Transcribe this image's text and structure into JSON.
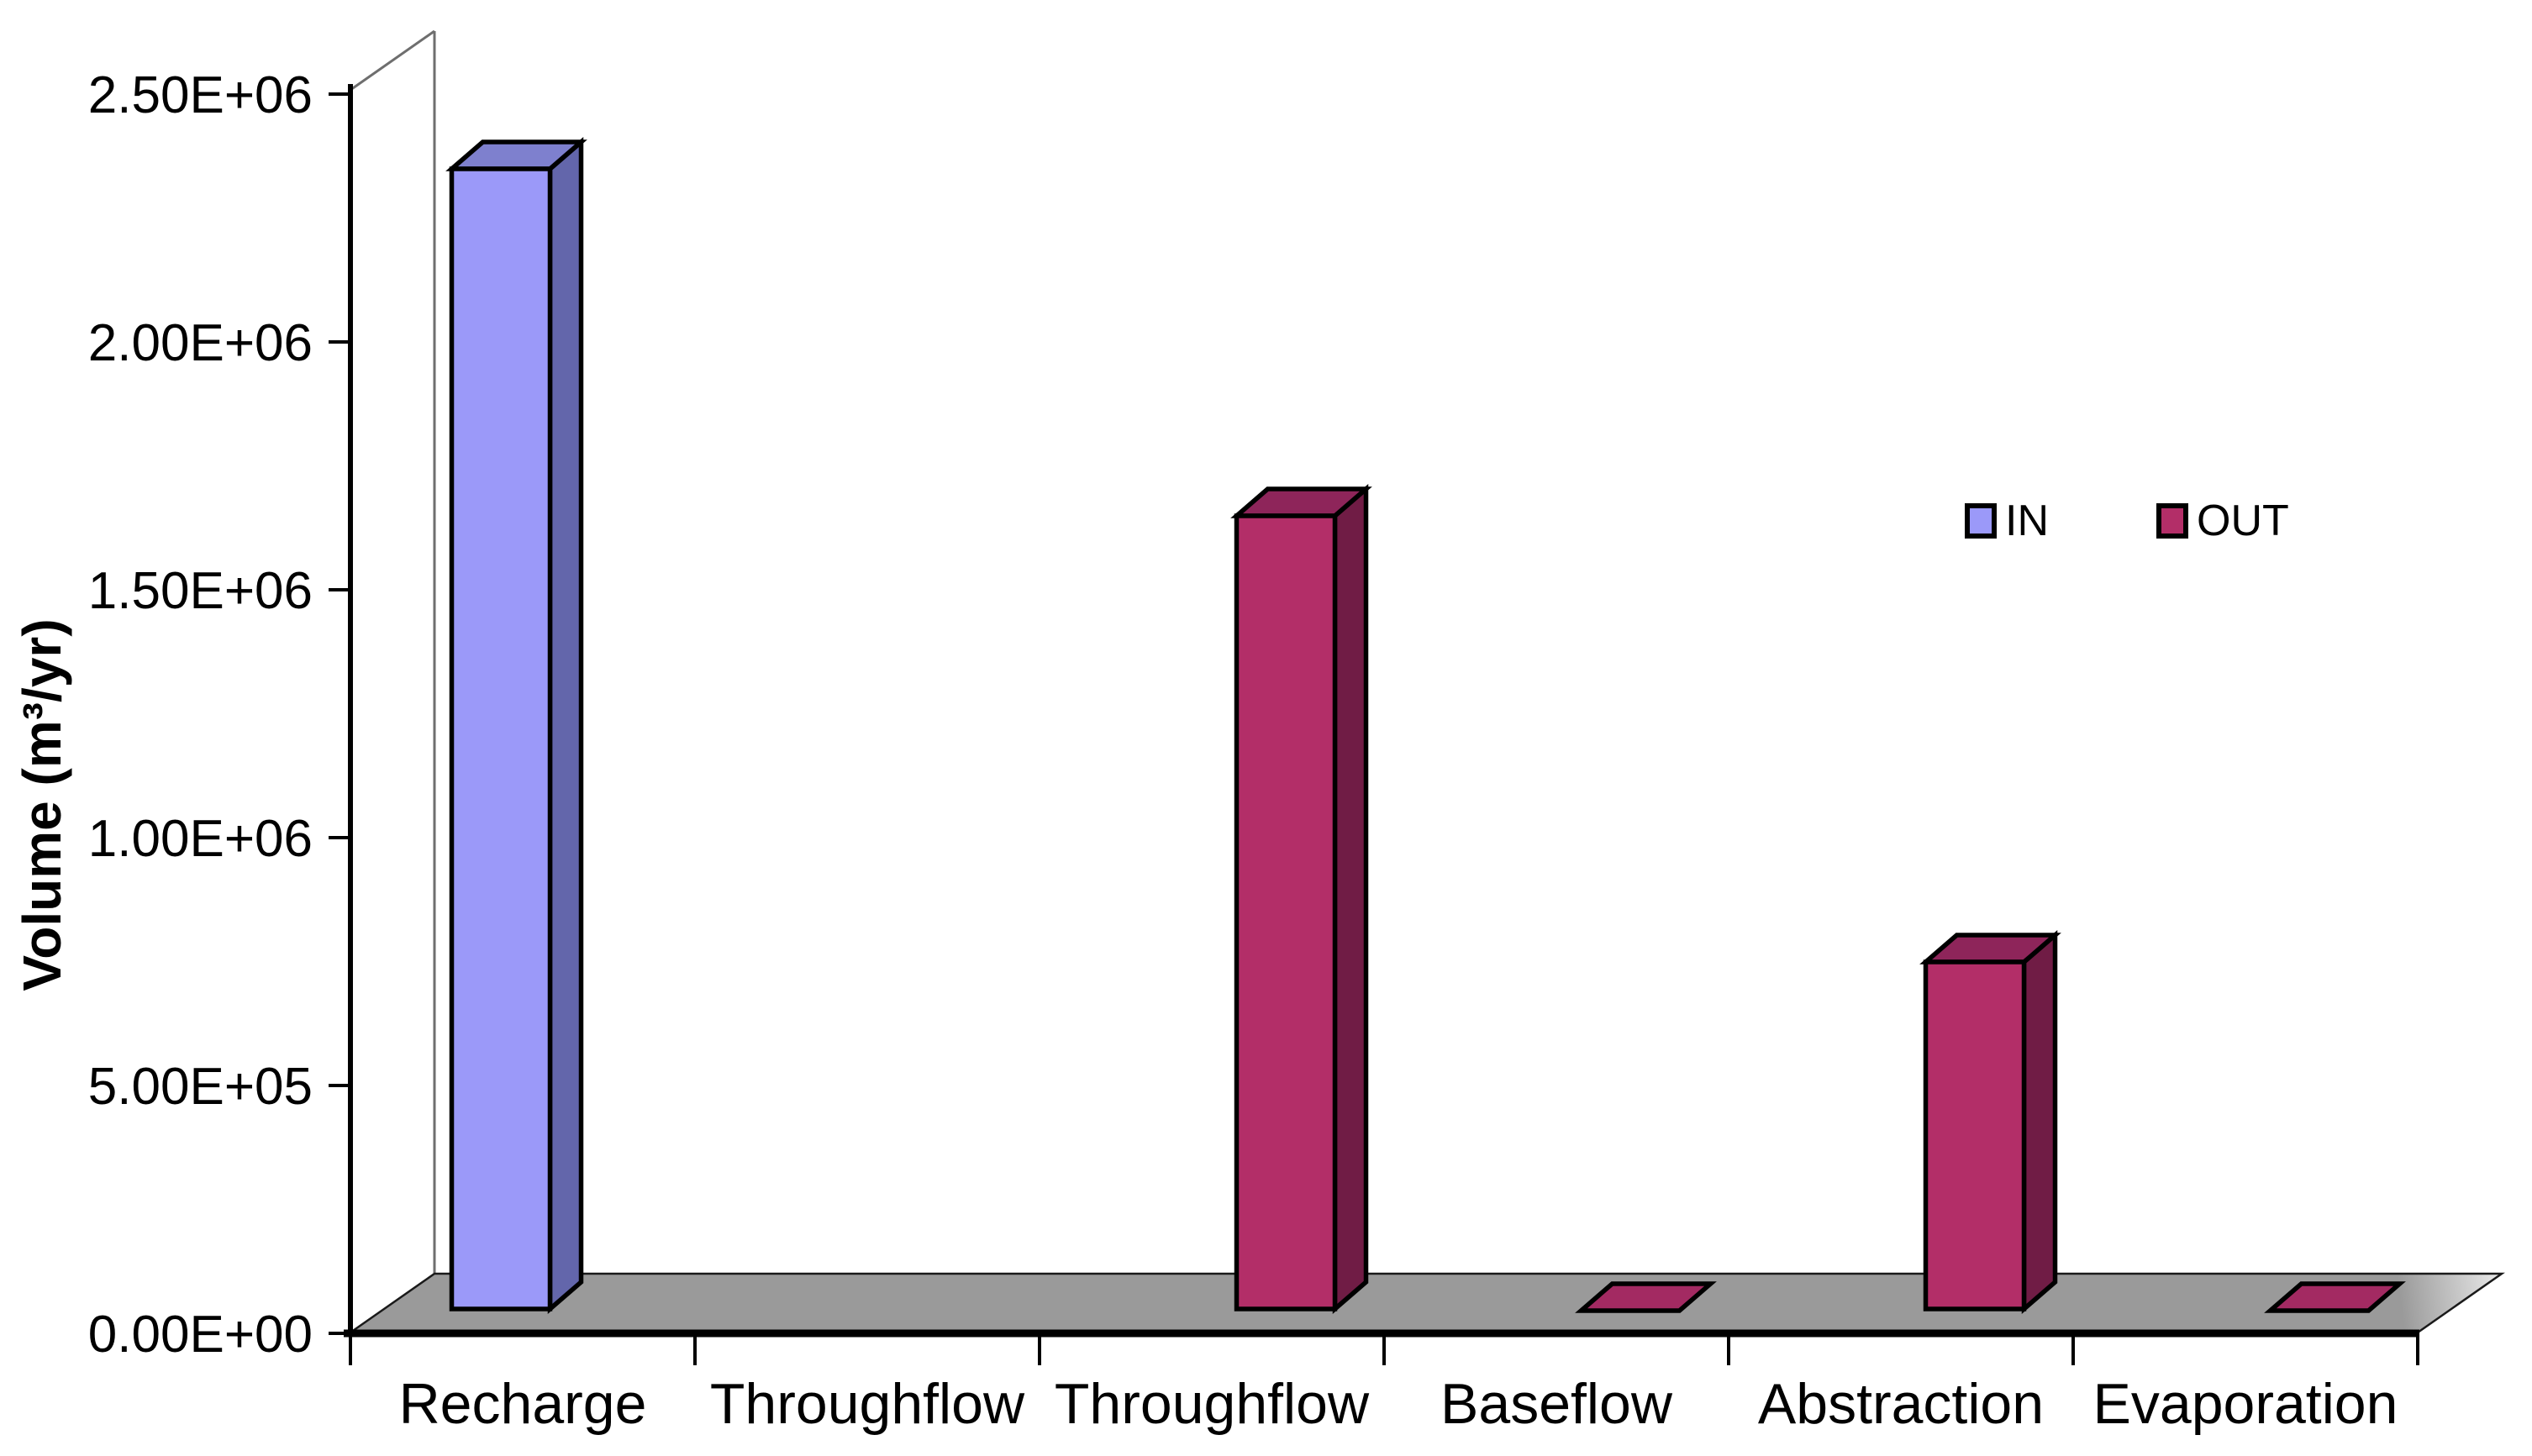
{
  "page": {
    "background": "#ffffff"
  },
  "legend": {
    "items": [
      {
        "label": "IN",
        "color": "#9B99F9"
      },
      {
        "label": "OUT",
        "color": "#B32E68"
      }
    ]
  },
  "chart_data": {
    "type": "bar",
    "subtype": "3d-column",
    "title": "",
    "xlabel": "",
    "ylabel": "Volume (m³/yr)",
    "categories": [
      "Recharge",
      "Throughflow",
      "Throughflow",
      "Baseflow",
      "Abstraction",
      "Evaporation"
    ],
    "series": [
      {
        "name": "IN",
        "color": "#9B99F9",
        "values": [
          2300000,
          0,
          null,
          null,
          null,
          null
        ]
      },
      {
        "name": "OUT",
        "color": "#B32E68",
        "values": [
          null,
          null,
          1600000,
          12000,
          700000,
          12000
        ]
      }
    ],
    "ylim": [
      0,
      2500000
    ],
    "y_ticks": [
      {
        "value": 0,
        "label": "0.00E+00"
      },
      {
        "value": 500000,
        "label": "5.00E+05"
      },
      {
        "value": 1000000,
        "label": "1.00E+06"
      },
      {
        "value": 1500000,
        "label": "1.50E+06"
      },
      {
        "value": 2000000,
        "label": "2.00E+06"
      },
      {
        "value": 2500000,
        "label": "2.50E+06"
      }
    ],
    "grid": false,
    "legend_position": "upper-right"
  },
  "style": {
    "series_faces": {
      "IN": {
        "front": "#9B99F9",
        "side": "#6366AB",
        "top": "#7E80CE",
        "flat": "#8B8BDE"
      },
      "OUT": {
        "front": "#B32E68",
        "side": "#701C45",
        "top": "#8E255A",
        "flat": "#A32A62"
      }
    },
    "floor_color": "#9A9A9A",
    "floor_fade": "#F4F4F4",
    "outline_color": "#000000",
    "wall_line_color": "#6e6e6e",
    "axis_color": "#000000",
    "text_color": "#000000"
  }
}
